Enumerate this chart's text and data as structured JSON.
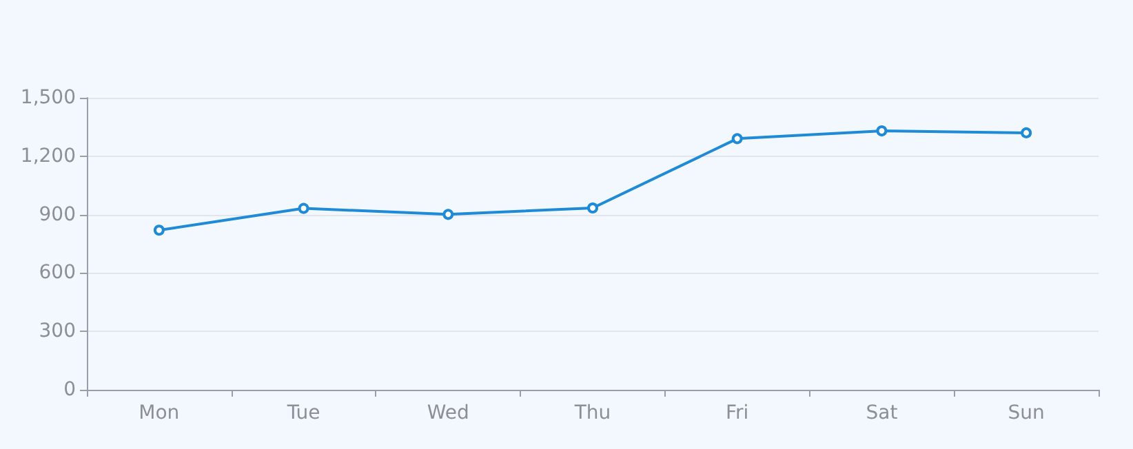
{
  "chart_data": {
    "type": "line",
    "categories": [
      "Mon",
      "Tue",
      "Wed",
      "Thu",
      "Fri",
      "Sat",
      "Sun"
    ],
    "series": [
      {
        "color": "#1f8ad6",
        "values": [
          820,
          932,
          901,
          934,
          1290,
          1330,
          1320
        ]
      }
    ],
    "ylim": [
      0,
      1500
    ],
    "yticks": [
      0,
      300,
      600,
      900,
      {
        "value": 1200,
        "label": "1,200"
      },
      {
        "value": 1500,
        "label": "1,500"
      }
    ],
    "grid": "y",
    "marker": "circle",
    "line_style": "solid"
  }
}
